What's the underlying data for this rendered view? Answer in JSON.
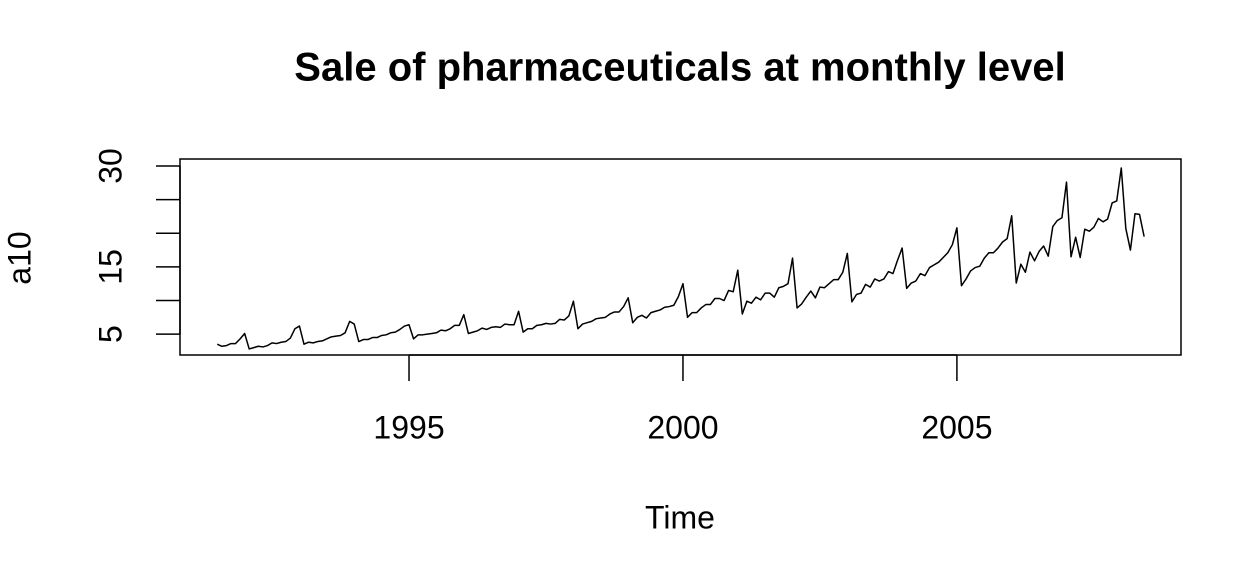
{
  "chart_data": {
    "type": "line",
    "title": "Sale of pharmaceuticals at monthly level",
    "x_label": "Time",
    "y_label": "a10",
    "color": "#000000",
    "xlim": [
      1990.82,
      2009.09
    ],
    "ylim": [
      1.9,
      31.04
    ],
    "xticks": [
      1995,
      2000,
      2005
    ],
    "yticks": [
      5,
      {
        "value": 10,
        "label": null
      },
      15,
      {
        "value": 20,
        "label": null
      },
      {
        "value": 25,
        "label": null
      },
      30
    ],
    "x": [
      1991.5,
      1991.583,
      1991.667,
      1991.75,
      1991.833,
      1991.917,
      1992.0,
      1992.083,
      1992.167,
      1992.25,
      1992.333,
      1992.417,
      1992.5,
      1992.583,
      1992.667,
      1992.75,
      1992.833,
      1992.917,
      1993.0,
      1993.083,
      1993.167,
      1993.25,
      1993.333,
      1993.417,
      1993.5,
      1993.583,
      1993.667,
      1993.75,
      1993.833,
      1993.917,
      1994.0,
      1994.083,
      1994.167,
      1994.25,
      1994.333,
      1994.417,
      1994.5,
      1994.583,
      1994.667,
      1994.75,
      1994.833,
      1994.917,
      1995.0,
      1995.083,
      1995.167,
      1995.25,
      1995.333,
      1995.417,
      1995.5,
      1995.583,
      1995.667,
      1995.75,
      1995.833,
      1995.917,
      1996.0,
      1996.083,
      1996.167,
      1996.25,
      1996.333,
      1996.417,
      1996.5,
      1996.583,
      1996.667,
      1996.75,
      1996.833,
      1996.917,
      1997.0,
      1997.083,
      1997.167,
      1997.25,
      1997.333,
      1997.417,
      1997.5,
      1997.583,
      1997.667,
      1997.75,
      1997.833,
      1997.917,
      1998.0,
      1998.083,
      1998.167,
      1998.25,
      1998.333,
      1998.417,
      1998.5,
      1998.583,
      1998.667,
      1998.75,
      1998.833,
      1998.917,
      1999.0,
      1999.083,
      1999.167,
      1999.25,
      1999.333,
      1999.417,
      1999.5,
      1999.583,
      1999.667,
      1999.75,
      1999.833,
      1999.917,
      2000.0,
      2000.083,
      2000.167,
      2000.25,
      2000.333,
      2000.417,
      2000.5,
      2000.583,
      2000.667,
      2000.75,
      2000.833,
      2000.917,
      2001.0,
      2001.083,
      2001.167,
      2001.25,
      2001.333,
      2001.417,
      2001.5,
      2001.583,
      2001.667,
      2001.75,
      2001.833,
      2001.917,
      2002.0,
      2002.083,
      2002.167,
      2002.25,
      2002.333,
      2002.417,
      2002.5,
      2002.583,
      2002.667,
      2002.75,
      2002.833,
      2002.917,
      2003.0,
      2003.083,
      2003.167,
      2003.25,
      2003.333,
      2003.417,
      2003.5,
      2003.583,
      2003.667,
      2003.75,
      2003.833,
      2003.917,
      2004.0,
      2004.083,
      2004.167,
      2004.25,
      2004.333,
      2004.417,
      2004.5,
      2004.583,
      2004.667,
      2004.75,
      2004.833,
      2004.917,
      2005.0,
      2005.083,
      2005.167,
      2005.25,
      2005.333,
      2005.417,
      2005.5,
      2005.583,
      2005.667,
      2005.75,
      2005.833,
      2005.917,
      2006.0,
      2006.083,
      2006.167,
      2006.25,
      2006.333,
      2006.417,
      2006.5,
      2006.583,
      2006.667,
      2006.75,
      2006.833,
      2006.917,
      2007.0,
      2007.083,
      2007.167,
      2007.25,
      2007.333,
      2007.417,
      2007.5,
      2007.583,
      2007.667,
      2007.75,
      2007.833,
      2007.917,
      2008.0,
      2008.083,
      2008.167,
      2008.25,
      2008.333,
      2008.417
    ],
    "values": [
      3.5,
      3.2,
      3.3,
      3.6,
      3.6,
      4.3,
      5.1,
      2.8,
      3.0,
      3.2,
      3.1,
      3.3,
      3.7,
      3.6,
      3.8,
      3.9,
      4.4,
      5.8,
      6.2,
      3.5,
      3.8,
      3.7,
      3.9,
      4.0,
      4.3,
      4.6,
      4.7,
      4.8,
      5.2,
      6.9,
      6.5,
      3.9,
      4.2,
      4.2,
      4.5,
      4.5,
      4.8,
      4.9,
      5.2,
      5.3,
      5.7,
      6.2,
      6.4,
      4.3,
      4.9,
      4.9,
      5.0,
      5.1,
      5.2,
      5.6,
      5.5,
      5.8,
      6.3,
      6.3,
      7.9,
      5.1,
      5.3,
      5.5,
      5.9,
      5.7,
      6.0,
      6.1,
      6.0,
      6.5,
      6.4,
      6.4,
      8.4,
      5.3,
      5.8,
      5.8,
      6.3,
      6.4,
      6.6,
      6.5,
      6.6,
      7.2,
      7.1,
      7.7,
      9.9,
      5.8,
      6.5,
      6.7,
      6.9,
      7.3,
      7.4,
      7.5,
      8.0,
      8.3,
      8.3,
      9.1,
      10.4,
      6.7,
      7.5,
      7.8,
      7.4,
      8.2,
      8.4,
      8.6,
      9.0,
      9.1,
      9.3,
      10.6,
      12.5,
      7.5,
      8.2,
      8.2,
      8.9,
      9.4,
      9.4,
      10.3,
      10.3,
      10.0,
      11.5,
      11.3,
      14.5,
      8.0,
      9.9,
      9.6,
      10.5,
      10.1,
      11.1,
      11.1,
      10.5,
      11.9,
      12.1,
      12.5,
      16.3,
      8.9,
      9.5,
      10.5,
      11.4,
      10.4,
      12.0,
      11.9,
      12.5,
      13.1,
      13.1,
      14.2,
      17.0,
      9.8,
      10.9,
      11.1,
      12.4,
      12.0,
      13.2,
      12.9,
      13.2,
      14.3,
      14.0,
      16.0,
      17.8,
      11.8,
      12.6,
      12.9,
      14.0,
      13.7,
      14.9,
      15.3,
      15.7,
      16.4,
      17.1,
      18.3,
      20.8,
      12.2,
      13.2,
      14.4,
      14.9,
      15.1,
      16.3,
      17.1,
      17.1,
      17.8,
      18.7,
      19.2,
      22.6,
      12.6,
      15.4,
      14.2,
      17.2,
      15.9,
      17.3,
      18.1,
      16.6,
      21.0,
      21.9,
      22.3,
      27.6,
      16.5,
      19.4,
      16.4,
      20.6,
      20.3,
      20.9,
      22.2,
      21.7,
      22.1,
      24.5,
      24.8,
      29.7,
      20.7,
      17.5,
      22.9,
      22.8,
      19.5
    ]
  }
}
